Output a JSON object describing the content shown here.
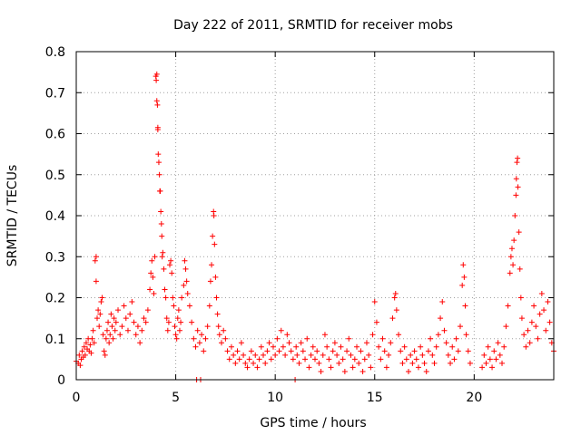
{
  "chart_data": {
    "type": "scatter",
    "title": "Day 222 of 2011, SRMTID for receiver mobs",
    "xlabel": "GPS time / hours",
    "ylabel": "SRMTID / TECUs",
    "xlim": [
      0,
      24
    ],
    "ylim": [
      0,
      0.8
    ],
    "xticks": [
      0,
      5,
      10,
      15,
      20
    ],
    "yticks": [
      0,
      0.1,
      0.2,
      0.3,
      0.4,
      0.5,
      0.6,
      0.7,
      0.8
    ],
    "xtick_labels": [
      "0",
      "5",
      "10",
      "15",
      "20"
    ],
    "ytick_labels": [
      "0",
      "0.1",
      "0.2",
      "0.3",
      "0.4",
      "0.5",
      "0.6",
      "0.7",
      "0.8"
    ],
    "grid": true,
    "marker": "+",
    "color": "#ff0000",
    "series": [
      {
        "name": "SRMTID",
        "points": [
          [
            0.0,
            0.045
          ],
          [
            0.1,
            0.04
          ],
          [
            0.15,
            0.06
          ],
          [
            0.2,
            0.035
          ],
          [
            0.25,
            0.05
          ],
          [
            0.3,
            0.07
          ],
          [
            0.35,
            0.055
          ],
          [
            0.4,
            0.08
          ],
          [
            0.45,
            0.06
          ],
          [
            0.5,
            0.09
          ],
          [
            0.55,
            0.075
          ],
          [
            0.6,
            0.1
          ],
          [
            0.65,
            0.07
          ],
          [
            0.7,
            0.085
          ],
          [
            0.75,
            0.065
          ],
          [
            0.8,
            0.1
          ],
          [
            0.85,
            0.12
          ],
          [
            0.9,
            0.09
          ],
          [
            0.95,
            0.29
          ],
          [
            1.0,
            0.3
          ],
          [
            1.0,
            0.24
          ],
          [
            1.05,
            0.15
          ],
          [
            1.1,
            0.17
          ],
          [
            1.15,
            0.13
          ],
          [
            1.2,
            0.16
          ],
          [
            1.25,
            0.19
          ],
          [
            1.3,
            0.2
          ],
          [
            1.35,
            0.11
          ],
          [
            1.4,
            0.07
          ],
          [
            1.45,
            0.06
          ],
          [
            1.5,
            0.1
          ],
          [
            1.55,
            0.12
          ],
          [
            1.6,
            0.14
          ],
          [
            1.65,
            0.09
          ],
          [
            1.7,
            0.11
          ],
          [
            1.75,
            0.16
          ],
          [
            1.8,
            0.13
          ],
          [
            1.85,
            0.1
          ],
          [
            1.9,
            0.15
          ],
          [
            1.95,
            0.12
          ],
          [
            2.0,
            0.14
          ],
          [
            2.1,
            0.17
          ],
          [
            2.2,
            0.11
          ],
          [
            2.3,
            0.13
          ],
          [
            2.4,
            0.18
          ],
          [
            2.5,
            0.15
          ],
          [
            2.6,
            0.12
          ],
          [
            2.7,
            0.16
          ],
          [
            2.8,
            0.19
          ],
          [
            2.9,
            0.14
          ],
          [
            3.0,
            0.11
          ],
          [
            3.1,
            0.13
          ],
          [
            3.2,
            0.09
          ],
          [
            3.3,
            0.12
          ],
          [
            3.4,
            0.15
          ],
          [
            3.5,
            0.14
          ],
          [
            3.6,
            0.17
          ],
          [
            3.7,
            0.22
          ],
          [
            3.75,
            0.26
          ],
          [
            3.8,
            0.29
          ],
          [
            3.85,
            0.25
          ],
          [
            3.9,
            0.21
          ],
          [
            3.95,
            0.3
          ],
          [
            4.0,
            0.74
          ],
          [
            4.02,
            0.73
          ],
          [
            4.05,
            0.745
          ],
          [
            4.05,
            0.68
          ],
          [
            4.08,
            0.67
          ],
          [
            4.1,
            0.615
          ],
          [
            4.1,
            0.61
          ],
          [
            4.12,
            0.55
          ],
          [
            4.15,
            0.53
          ],
          [
            4.18,
            0.5
          ],
          [
            4.2,
            0.46
          ],
          [
            4.22,
            0.46
          ],
          [
            4.25,
            0.41
          ],
          [
            4.28,
            0.38
          ],
          [
            4.3,
            0.35
          ],
          [
            4.32,
            0.3
          ],
          [
            4.35,
            0.31
          ],
          [
            4.4,
            0.27
          ],
          [
            4.45,
            0.22
          ],
          [
            4.5,
            0.2
          ],
          [
            4.55,
            0.15
          ],
          [
            4.6,
            0.12
          ],
          [
            4.65,
            0.14
          ],
          [
            4.7,
            0.28
          ],
          [
            4.75,
            0.29
          ],
          [
            4.8,
            0.26
          ],
          [
            4.85,
            0.2
          ],
          [
            4.9,
            0.18
          ],
          [
            4.95,
            0.13
          ],
          [
            5.0,
            0.11
          ],
          [
            5.05,
            0.1
          ],
          [
            5.1,
            0.15
          ],
          [
            5.15,
            0.17
          ],
          [
            5.2,
            0.12
          ],
          [
            5.25,
            0.14
          ],
          [
            5.3,
            0.2
          ],
          [
            5.4,
            0.23
          ],
          [
            5.45,
            0.29
          ],
          [
            5.5,
            0.27
          ],
          [
            5.55,
            0.24
          ],
          [
            5.6,
            0.21
          ],
          [
            5.7,
            0.18
          ],
          [
            5.8,
            0.14
          ],
          [
            5.9,
            0.1
          ],
          [
            6.0,
            0.08
          ],
          [
            6.05,
            0.0
          ],
          [
            6.1,
            0.12
          ],
          [
            6.2,
            0.09
          ],
          [
            6.25,
            0.0
          ],
          [
            6.3,
            0.11
          ],
          [
            6.4,
            0.07
          ],
          [
            6.5,
            0.1
          ],
          [
            6.6,
            0.13
          ],
          [
            6.7,
            0.18
          ],
          [
            6.75,
            0.24
          ],
          [
            6.8,
            0.28
          ],
          [
            6.85,
            0.35
          ],
          [
            6.9,
            0.41
          ],
          [
            6.92,
            0.4
          ],
          [
            6.95,
            0.33
          ],
          [
            7.0,
            0.25
          ],
          [
            7.05,
            0.2
          ],
          [
            7.1,
            0.16
          ],
          [
            7.15,
            0.13
          ],
          [
            7.2,
            0.11
          ],
          [
            7.3,
            0.09
          ],
          [
            7.4,
            0.12
          ],
          [
            7.5,
            0.1
          ],
          [
            7.6,
            0.07
          ],
          [
            7.7,
            0.05
          ],
          [
            7.8,
            0.08
          ],
          [
            7.9,
            0.06
          ],
          [
            8.0,
            0.04
          ],
          [
            8.1,
            0.07
          ],
          [
            8.2,
            0.05
          ],
          [
            8.3,
            0.09
          ],
          [
            8.4,
            0.06
          ],
          [
            8.5,
            0.04
          ],
          [
            8.6,
            0.03
          ],
          [
            8.7,
            0.05
          ],
          [
            8.8,
            0.07
          ],
          [
            8.9,
            0.04
          ],
          [
            9.0,
            0.06
          ],
          [
            9.1,
            0.03
          ],
          [
            9.2,
            0.05
          ],
          [
            9.3,
            0.08
          ],
          [
            9.4,
            0.06
          ],
          [
            9.5,
            0.04
          ],
          [
            9.6,
            0.07
          ],
          [
            9.7,
            0.09
          ],
          [
            9.8,
            0.05
          ],
          [
            9.9,
            0.08
          ],
          [
            10.0,
            0.06
          ],
          [
            10.1,
            0.1
          ],
          [
            10.2,
            0.07
          ],
          [
            10.3,
            0.12
          ],
          [
            10.4,
            0.08
          ],
          [
            10.5,
            0.06
          ],
          [
            10.6,
            0.11
          ],
          [
            10.7,
            0.09
          ],
          [
            10.8,
            0.07
          ],
          [
            10.9,
            0.05
          ],
          [
            11.0,
            0.0
          ],
          [
            11.05,
            0.08
          ],
          [
            11.1,
            0.06
          ],
          [
            11.2,
            0.04
          ],
          [
            11.3,
            0.09
          ],
          [
            11.4,
            0.07
          ],
          [
            11.5,
            0.05
          ],
          [
            11.6,
            0.1
          ],
          [
            11.7,
            0.03
          ],
          [
            11.8,
            0.06
          ],
          [
            11.9,
            0.08
          ],
          [
            12.0,
            0.05
          ],
          [
            12.1,
            0.07
          ],
          [
            12.2,
            0.04
          ],
          [
            12.3,
            0.02
          ],
          [
            12.4,
            0.06
          ],
          [
            12.5,
            0.11
          ],
          [
            12.6,
            0.08
          ],
          [
            12.7,
            0.05
          ],
          [
            12.8,
            0.03
          ],
          [
            12.9,
            0.07
          ],
          [
            13.0,
            0.09
          ],
          [
            13.1,
            0.06
          ],
          [
            13.2,
            0.04
          ],
          [
            13.3,
            0.08
          ],
          [
            13.4,
            0.05
          ],
          [
            13.5,
            0.02
          ],
          [
            13.6,
            0.07
          ],
          [
            13.7,
            0.1
          ],
          [
            13.8,
            0.06
          ],
          [
            13.9,
            0.03
          ],
          [
            14.0,
            0.05
          ],
          [
            14.1,
            0.08
          ],
          [
            14.2,
            0.04
          ],
          [
            14.3,
            0.07
          ],
          [
            14.4,
            0.02
          ],
          [
            14.5,
            0.05
          ],
          [
            14.6,
            0.09
          ],
          [
            14.7,
            0.06
          ],
          [
            14.8,
            0.03
          ],
          [
            14.9,
            0.11
          ],
          [
            15.0,
            0.19
          ],
          [
            15.1,
            0.14
          ],
          [
            15.2,
            0.08
          ],
          [
            15.3,
            0.05
          ],
          [
            15.4,
            0.1
          ],
          [
            15.5,
            0.07
          ],
          [
            15.6,
            0.03
          ],
          [
            15.7,
            0.06
          ],
          [
            15.8,
            0.09
          ],
          [
            15.9,
            0.15
          ],
          [
            16.0,
            0.2
          ],
          [
            16.05,
            0.21
          ],
          [
            16.1,
            0.17
          ],
          [
            16.2,
            0.11
          ],
          [
            16.3,
            0.07
          ],
          [
            16.4,
            0.04
          ],
          [
            16.5,
            0.08
          ],
          [
            16.6,
            0.05
          ],
          [
            16.7,
            0.02
          ],
          [
            16.8,
            0.06
          ],
          [
            16.9,
            0.04
          ],
          [
            17.0,
            0.07
          ],
          [
            17.1,
            0.05
          ],
          [
            17.2,
            0.03
          ],
          [
            17.3,
            0.08
          ],
          [
            17.4,
            0.06
          ],
          [
            17.5,
            0.04
          ],
          [
            17.6,
            0.02
          ],
          [
            17.7,
            0.07
          ],
          [
            17.8,
            0.1
          ],
          [
            17.9,
            0.06
          ],
          [
            18.0,
            0.04
          ],
          [
            18.1,
            0.08
          ],
          [
            18.2,
            0.11
          ],
          [
            18.3,
            0.15
          ],
          [
            18.4,
            0.19
          ],
          [
            18.5,
            0.12
          ],
          [
            18.6,
            0.09
          ],
          [
            18.7,
            0.06
          ],
          [
            18.8,
            0.04
          ],
          [
            18.9,
            0.08
          ],
          [
            19.0,
            0.05
          ],
          [
            19.1,
            0.1
          ],
          [
            19.2,
            0.07
          ],
          [
            19.3,
            0.13
          ],
          [
            19.4,
            0.23
          ],
          [
            19.45,
            0.28
          ],
          [
            19.5,
            0.25
          ],
          [
            19.55,
            0.18
          ],
          [
            19.6,
            0.11
          ],
          [
            19.7,
            0.07
          ],
          [
            19.8,
            0.04
          ],
          [
            20.4,
            0.03
          ],
          [
            20.5,
            0.06
          ],
          [
            20.6,
            0.04
          ],
          [
            20.7,
            0.08
          ],
          [
            20.8,
            0.05
          ],
          [
            20.9,
            0.03
          ],
          [
            21.0,
            0.07
          ],
          [
            21.1,
            0.05
          ],
          [
            21.2,
            0.09
          ],
          [
            21.3,
            0.06
          ],
          [
            21.4,
            0.04
          ],
          [
            21.5,
            0.08
          ],
          [
            21.6,
            0.13
          ],
          [
            21.7,
            0.18
          ],
          [
            21.8,
            0.26
          ],
          [
            21.85,
            0.3
          ],
          [
            21.9,
            0.32
          ],
          [
            21.95,
            0.28
          ],
          [
            22.0,
            0.34
          ],
          [
            22.05,
            0.4
          ],
          [
            22.1,
            0.45
          ],
          [
            22.12,
            0.49
          ],
          [
            22.15,
            0.53
          ],
          [
            22.18,
            0.54
          ],
          [
            22.2,
            0.47
          ],
          [
            22.25,
            0.36
          ],
          [
            22.3,
            0.27
          ],
          [
            22.35,
            0.2
          ],
          [
            22.4,
            0.15
          ],
          [
            22.5,
            0.11
          ],
          [
            22.6,
            0.08
          ],
          [
            22.7,
            0.12
          ],
          [
            22.8,
            0.09
          ],
          [
            22.9,
            0.14
          ],
          [
            23.0,
            0.18
          ],
          [
            23.1,
            0.13
          ],
          [
            23.2,
            0.1
          ],
          [
            23.3,
            0.16
          ],
          [
            23.4,
            0.21
          ],
          [
            23.5,
            0.17
          ],
          [
            23.6,
            0.12
          ],
          [
            23.7,
            0.19
          ],
          [
            23.8,
            0.14
          ],
          [
            23.9,
            0.09
          ],
          [
            24.0,
            0.07
          ]
        ]
      }
    ]
  }
}
